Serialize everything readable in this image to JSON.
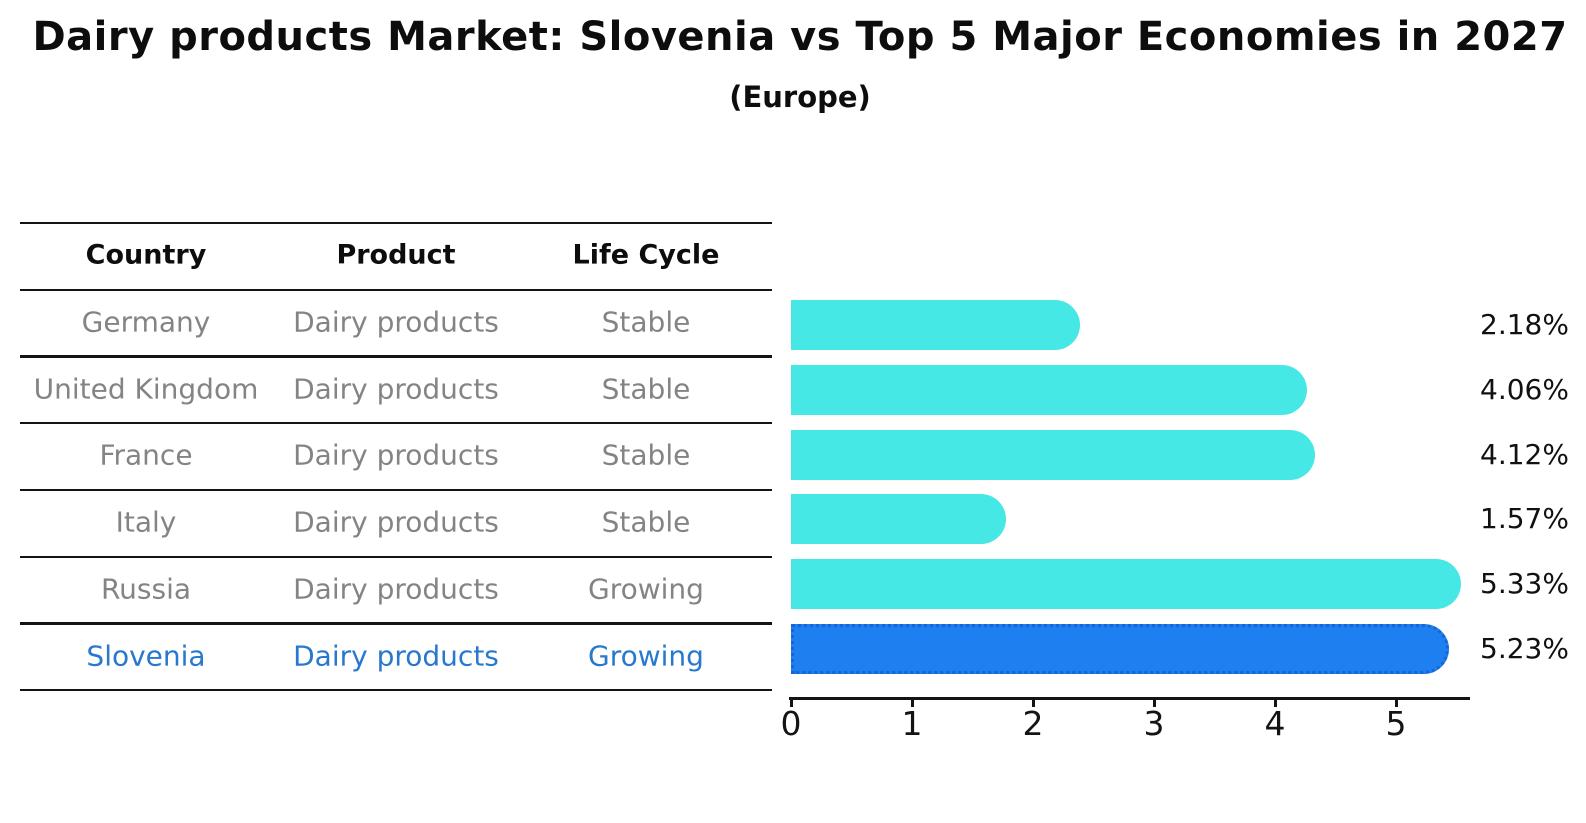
{
  "chart": {
    "title": "Dairy products Market: Slovenia vs Top 5 Major Economies in 2027",
    "subtitle": "(Europe)"
  },
  "table": {
    "headers": [
      "Country",
      "Product",
      "Life Cycle"
    ],
    "rows": [
      {
        "country": "Germany",
        "product": "Dairy products",
        "life_cycle": "Stable",
        "highlight": false
      },
      {
        "country": "United Kingdom",
        "product": "Dairy products",
        "life_cycle": "Stable",
        "highlight": false
      },
      {
        "country": "France",
        "product": "Dairy products",
        "life_cycle": "Stable",
        "highlight": false
      },
      {
        "country": "Italy",
        "product": "Dairy products",
        "life_cycle": "Stable",
        "highlight": false
      },
      {
        "country": "Russia",
        "product": "Dairy products",
        "life_cycle": "Growing",
        "highlight": false
      },
      {
        "country": "Slovenia",
        "product": "Dairy products",
        "life_cycle": "Growing",
        "highlight": true
      }
    ]
  },
  "chart_data": {
    "type": "bar",
    "orientation": "horizontal",
    "title": "Dairy products Market: Slovenia vs Top 5 Major Economies in 2027",
    "subtitle": "(Europe)",
    "categories": [
      "Germany",
      "United Kingdom",
      "France",
      "Italy",
      "Russia",
      "Slovenia"
    ],
    "values": [
      2.18,
      4.06,
      4.12,
      1.57,
      5.33,
      5.23
    ],
    "value_labels": [
      "2.18%",
      "4.06%",
      "4.12%",
      "1.57%",
      "5.33%",
      "5.23%"
    ],
    "x_ticks": [
      "0",
      "1",
      "2",
      "3",
      "4",
      "5"
    ],
    "xlim": [
      0,
      5.6
    ],
    "xlabel": "",
    "ylabel": "",
    "grid": false,
    "legend": "none",
    "highlight_index": 5
  },
  "colors": {
    "bar_default": "#45e8e4",
    "bar_highlight": "#1e80f0",
    "bar_highlight_border": "#1565d4",
    "table_text": "#848484",
    "table_text_highlight": "#2878ce",
    "text": "#0d0d0d",
    "background": "#ffffff"
  }
}
